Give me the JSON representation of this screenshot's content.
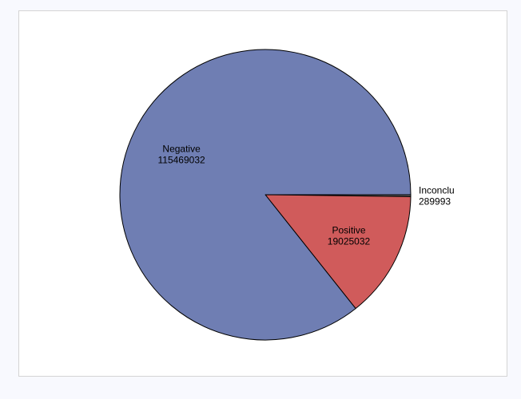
{
  "chart_data": {
    "type": "pie",
    "title": "",
    "slices": [
      {
        "label": "Inconclu",
        "value": 289993,
        "color": "#5a5a5a"
      },
      {
        "label": "Positive",
        "value": 19025032,
        "color": "#d05b5b"
      },
      {
        "label": "Negative",
        "value": 115469032,
        "color": "#6f7eb3"
      }
    ],
    "start_angle_deg": 0,
    "direction": "clockwise",
    "legend": "none",
    "label_style": "category and value inside slices; small slice labeled outside"
  }
}
